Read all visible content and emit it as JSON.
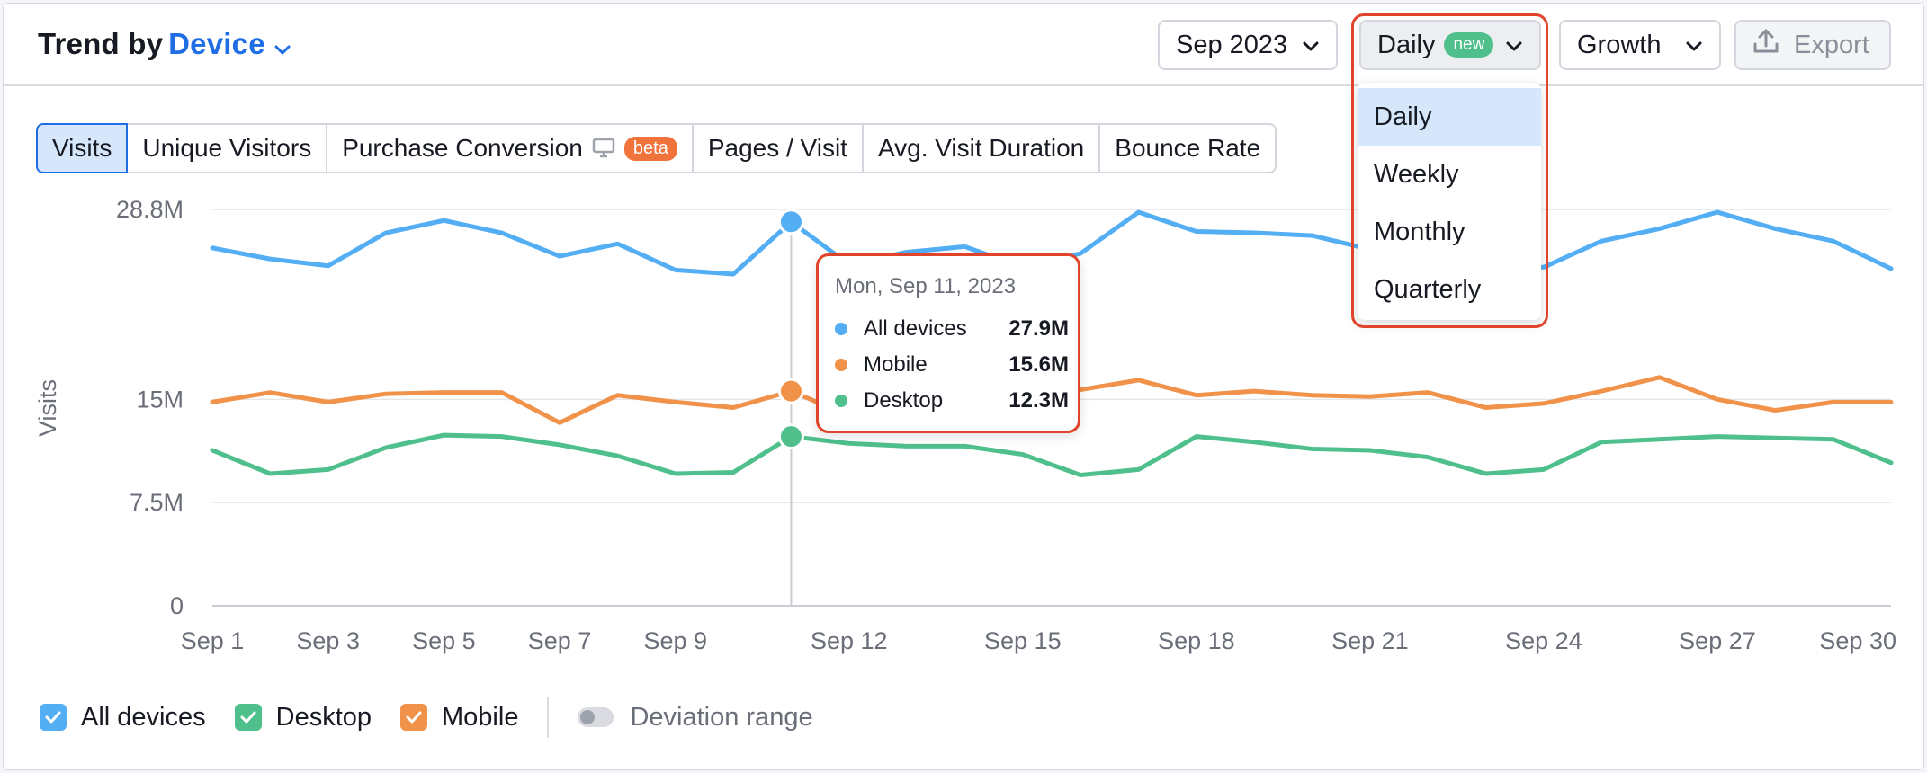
{
  "header": {
    "title_prefix": "Trend by",
    "title_dimension": "Device",
    "period": "Sep 2023",
    "granularity": "Daily",
    "granularity_badge": "new",
    "mode": "Growth",
    "export": "Export"
  },
  "granularity_menu": {
    "items": [
      "Daily",
      "Weekly",
      "Monthly",
      "Quarterly"
    ],
    "selected": "Daily"
  },
  "tabs": [
    {
      "label": "Visits",
      "active": true
    },
    {
      "label": "Unique Visitors"
    },
    {
      "label": "Purchase Conversion",
      "badge": "beta"
    },
    {
      "label": "Pages / Visit"
    },
    {
      "label": "Avg. Visit Duration"
    },
    {
      "label": "Bounce Rate"
    }
  ],
  "tooltip": {
    "date": "Mon, Sep 11, 2023",
    "rows": [
      {
        "label": "All devices",
        "value": "27.9M",
        "color": "#53aef4"
      },
      {
        "label": "Mobile",
        "value": "15.6M",
        "color": "#f0924a"
      },
      {
        "label": "Desktop",
        "value": "12.3M",
        "color": "#4fbf8b"
      }
    ]
  },
  "legend": {
    "items": [
      {
        "label": "All devices",
        "color": "#53aef4",
        "checked": true
      },
      {
        "label": "Desktop",
        "color": "#4fbf8b",
        "checked": true
      },
      {
        "label": "Mobile",
        "color": "#f0924a",
        "checked": true
      }
    ],
    "deviation_label": "Deviation range"
  },
  "chart_data": {
    "type": "line",
    "ylabel": "Visits",
    "y_ticks": [
      "0",
      "7.5M",
      "15M",
      "28.8M"
    ],
    "y_tick_values": [
      0,
      7.5,
      15,
      28.8
    ],
    "ylim": [
      0,
      28.8
    ],
    "x": [
      1,
      2,
      3,
      4,
      5,
      6,
      7,
      8,
      9,
      10,
      11,
      12,
      13,
      14,
      15,
      16,
      17,
      18,
      19,
      20,
      21,
      22,
      23,
      24,
      25,
      26,
      27,
      28,
      29,
      30
    ],
    "x_ticks": [
      {
        "day": 1,
        "label": "Sep 1"
      },
      {
        "day": 3,
        "label": "Sep 3"
      },
      {
        "day": 5,
        "label": "Sep 5"
      },
      {
        "day": 7,
        "label": "Sep 7"
      },
      {
        "day": 9,
        "label": "Sep 9"
      },
      {
        "day": 12,
        "label": "Sep 12"
      },
      {
        "day": 15,
        "label": "Sep 15"
      },
      {
        "day": 18,
        "label": "Sep 18"
      },
      {
        "day": 21,
        "label": "Sep 21"
      },
      {
        "day": 24,
        "label": "Sep 24"
      },
      {
        "day": 27,
        "label": "Sep 27"
      },
      {
        "day": 30,
        "label": "Sep 30"
      }
    ],
    "grid": true,
    "highlight_day": 11,
    "series": [
      {
        "name": "All devices",
        "color": "#53aef4",
        "values": [
          26.0,
          25.2,
          24.7,
          27.1,
          28.0,
          27.1,
          25.4,
          26.3,
          24.4,
          24.1,
          27.9,
          24.8,
          25.7,
          26.1,
          24.6,
          25.6,
          28.6,
          27.2,
          27.1,
          26.9,
          25.9,
          25.9,
          24.7,
          24.6,
          26.5,
          27.4,
          28.6,
          27.4,
          26.5,
          24.5
        ]
      },
      {
        "name": "Mobile",
        "color": "#f0924a",
        "values": [
          14.8,
          15.5,
          14.8,
          15.4,
          15.5,
          15.5,
          13.3,
          15.3,
          14.8,
          14.4,
          15.6,
          13.8,
          14.2,
          14.6,
          14.4,
          15.7,
          16.4,
          15.3,
          15.6,
          15.3,
          15.2,
          15.5,
          14.4,
          14.7,
          15.6,
          16.6,
          15.0,
          14.2,
          14.8,
          14.8
        ]
      },
      {
        "name": "Desktop",
        "color": "#4fbf8b",
        "values": [
          11.3,
          9.6,
          9.9,
          11.5,
          12.4,
          12.3,
          11.7,
          10.9,
          9.6,
          9.7,
          12.3,
          11.8,
          11.6,
          11.6,
          11.0,
          9.5,
          9.9,
          12.3,
          11.9,
          11.4,
          11.3,
          10.8,
          9.6,
          9.9,
          11.9,
          12.1,
          12.3,
          12.2,
          12.1,
          10.4
        ]
      }
    ]
  }
}
